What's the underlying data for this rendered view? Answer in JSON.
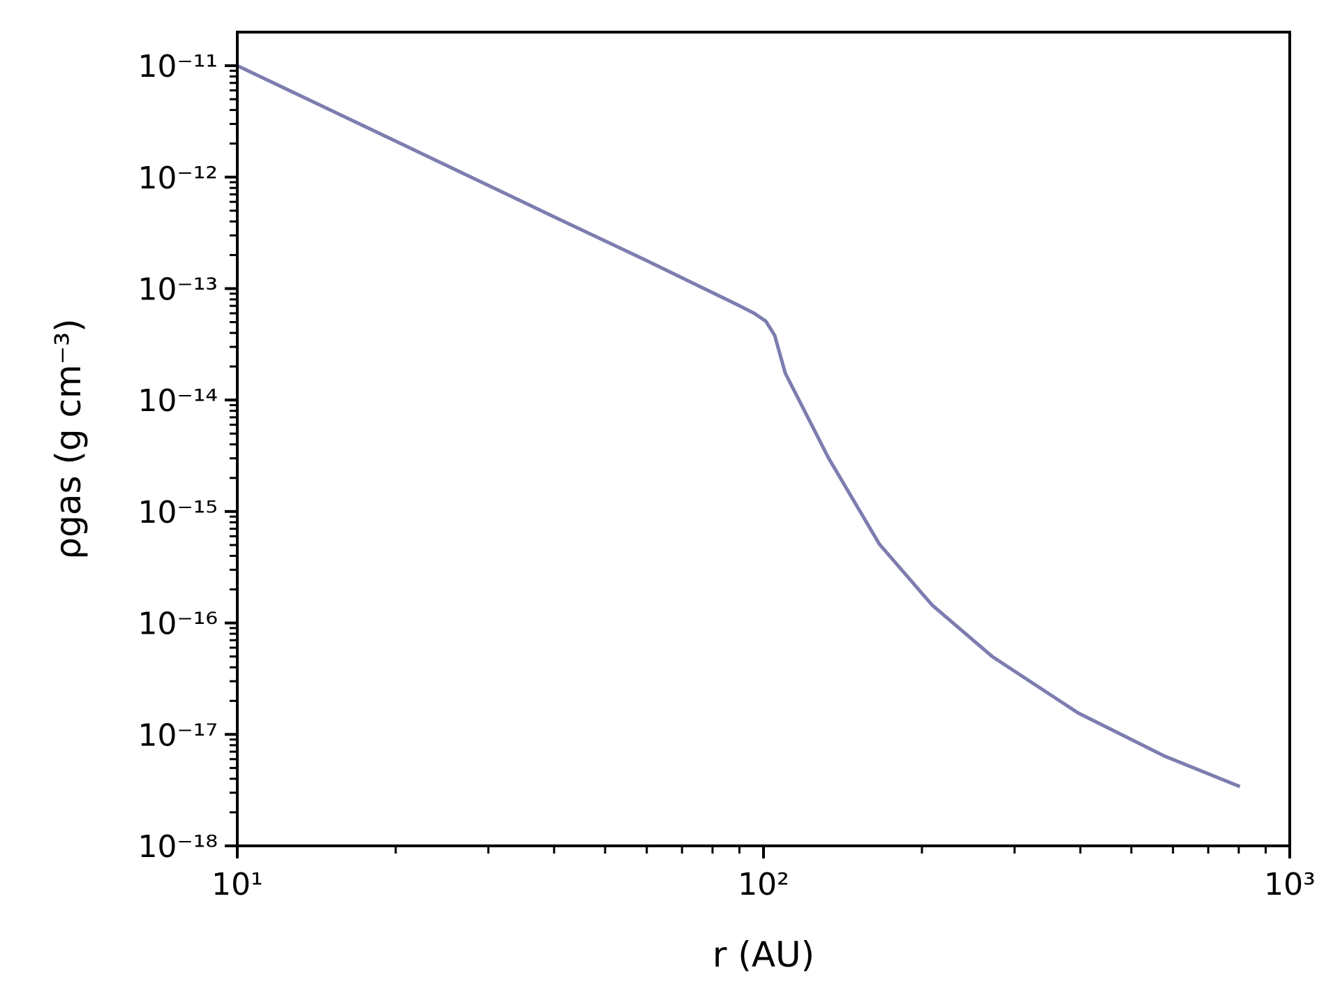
{
  "chart_data": {
    "type": "line",
    "xlabel": "r (AU)",
    "ylabel": "ρgas (g cm⁻³)",
    "xscale": "log",
    "yscale": "log",
    "xlim": [
      10,
      1000
    ],
    "ylim": [
      1e-18,
      2e-11
    ],
    "xticks": [
      {
        "value": 10,
        "label": "10¹"
      },
      {
        "value": 100,
        "label": "10²"
      },
      {
        "value": 1000,
        "label": "10³"
      }
    ],
    "yticks": [
      {
        "value": 1e-18,
        "label": "10⁻¹⁸"
      },
      {
        "value": 1e-17,
        "label": "10⁻¹⁷"
      },
      {
        "value": 1e-16,
        "label": "10⁻¹⁶"
      },
      {
        "value": 1e-15,
        "label": "10⁻¹⁵"
      },
      {
        "value": 1e-14,
        "label": "10⁻¹⁴"
      },
      {
        "value": 1e-13,
        "label": "10⁻¹³"
      },
      {
        "value": 1e-12,
        "label": "10⁻¹²"
      },
      {
        "value": 1e-11,
        "label": "10⁻¹¹"
      }
    ],
    "series": [
      {
        "color": "#7d7db0",
        "x": [
          10,
          20,
          40,
          60,
          89,
          96,
          101,
          105,
          110,
          133,
          166,
          209,
          272,
          396,
          578,
          804
        ],
        "values": [
          1e-11,
          2.1e-12,
          4.4e-13,
          1.78e-13,
          7.2e-14,
          6e-14,
          5.1e-14,
          3.8e-14,
          1.74e-14,
          3e-15,
          5.1e-16,
          1.45e-16,
          5e-17,
          1.56e-17,
          6.4e-18,
          3.4e-18
        ]
      }
    ]
  }
}
